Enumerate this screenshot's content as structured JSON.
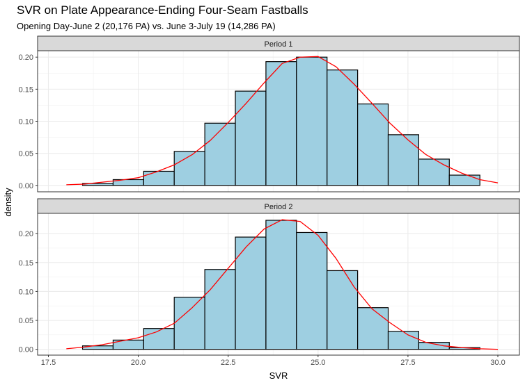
{
  "chart_data": {
    "type": "histogram",
    "title": "SVR on Plate Appearance-Ending Four-Seam Fastballs",
    "subtitle": "Opening Day-June 2 (20,176 PA) vs. June 3-July 19 (14,286 PA)",
    "xlabel": "SVR",
    "ylabel": "density",
    "xlim": [
      17.2,
      30.6
    ],
    "x_ticks": [
      17.5,
      20.0,
      22.5,
      25.0,
      27.5,
      30.0
    ],
    "x_tick_labels": [
      "17.5",
      "20.0",
      "22.5",
      "25.0",
      "27.5",
      "30.0"
    ],
    "y_ticks": [
      0.0,
      0.05,
      0.1,
      0.15,
      0.2
    ],
    "y_tick_labels": [
      "0.00",
      "0.05",
      "0.10",
      "0.15",
      "0.20"
    ],
    "bin_edges": [
      18.45,
      19.3,
      20.15,
      21.0,
      21.85,
      22.7,
      23.55,
      24.4,
      25.25,
      26.1,
      26.95,
      27.8,
      28.65,
      29.5
    ],
    "bar_fill": "#9ecfe1",
    "bar_outline": "#000000",
    "density_line_color": "#ff0000",
    "panels": [
      {
        "name": "Period 1",
        "ylim": [
          -0.01,
          0.21
        ],
        "bars": [
          0.003,
          0.009,
          0.022,
          0.053,
          0.097,
          0.147,
          0.193,
          0.2,
          0.18,
          0.127,
          0.079,
          0.041,
          0.016
        ],
        "density_x": [
          18.0,
          18.5,
          19.0,
          19.5,
          20.0,
          20.5,
          21.0,
          21.5,
          22.0,
          22.5,
          23.0,
          23.5,
          24.0,
          24.5,
          25.0,
          25.5,
          26.0,
          26.5,
          27.0,
          27.5,
          28.0,
          28.5,
          29.0,
          29.5,
          30.0
        ],
        "density_y": [
          0.001,
          0.002,
          0.005,
          0.008,
          0.012,
          0.021,
          0.032,
          0.048,
          0.07,
          0.098,
          0.128,
          0.16,
          0.19,
          0.2,
          0.201,
          0.185,
          0.158,
          0.128,
          0.097,
          0.071,
          0.048,
          0.032,
          0.019,
          0.009,
          0.004
        ]
      },
      {
        "name": "Period 2",
        "ylim": [
          -0.01,
          0.235
        ],
        "bars": [
          0.006,
          0.016,
          0.036,
          0.09,
          0.138,
          0.194,
          0.223,
          0.202,
          0.136,
          0.072,
          0.031,
          0.012,
          0.003
        ],
        "density_x": [
          18.0,
          18.5,
          19.0,
          19.5,
          20.0,
          20.5,
          21.0,
          21.5,
          22.0,
          22.5,
          23.0,
          23.5,
          24.0,
          24.5,
          25.0,
          25.5,
          26.0,
          26.5,
          27.0,
          27.5,
          28.0,
          28.5,
          29.0,
          29.5,
          30.0
        ],
        "density_y": [
          0.001,
          0.004,
          0.008,
          0.014,
          0.02,
          0.03,
          0.045,
          0.072,
          0.103,
          0.14,
          0.177,
          0.208,
          0.224,
          0.221,
          0.197,
          0.157,
          0.108,
          0.07,
          0.046,
          0.025,
          0.012,
          0.006,
          0.003,
          0.001,
          0.0
        ]
      }
    ],
    "grid": true,
    "legend": "none"
  }
}
